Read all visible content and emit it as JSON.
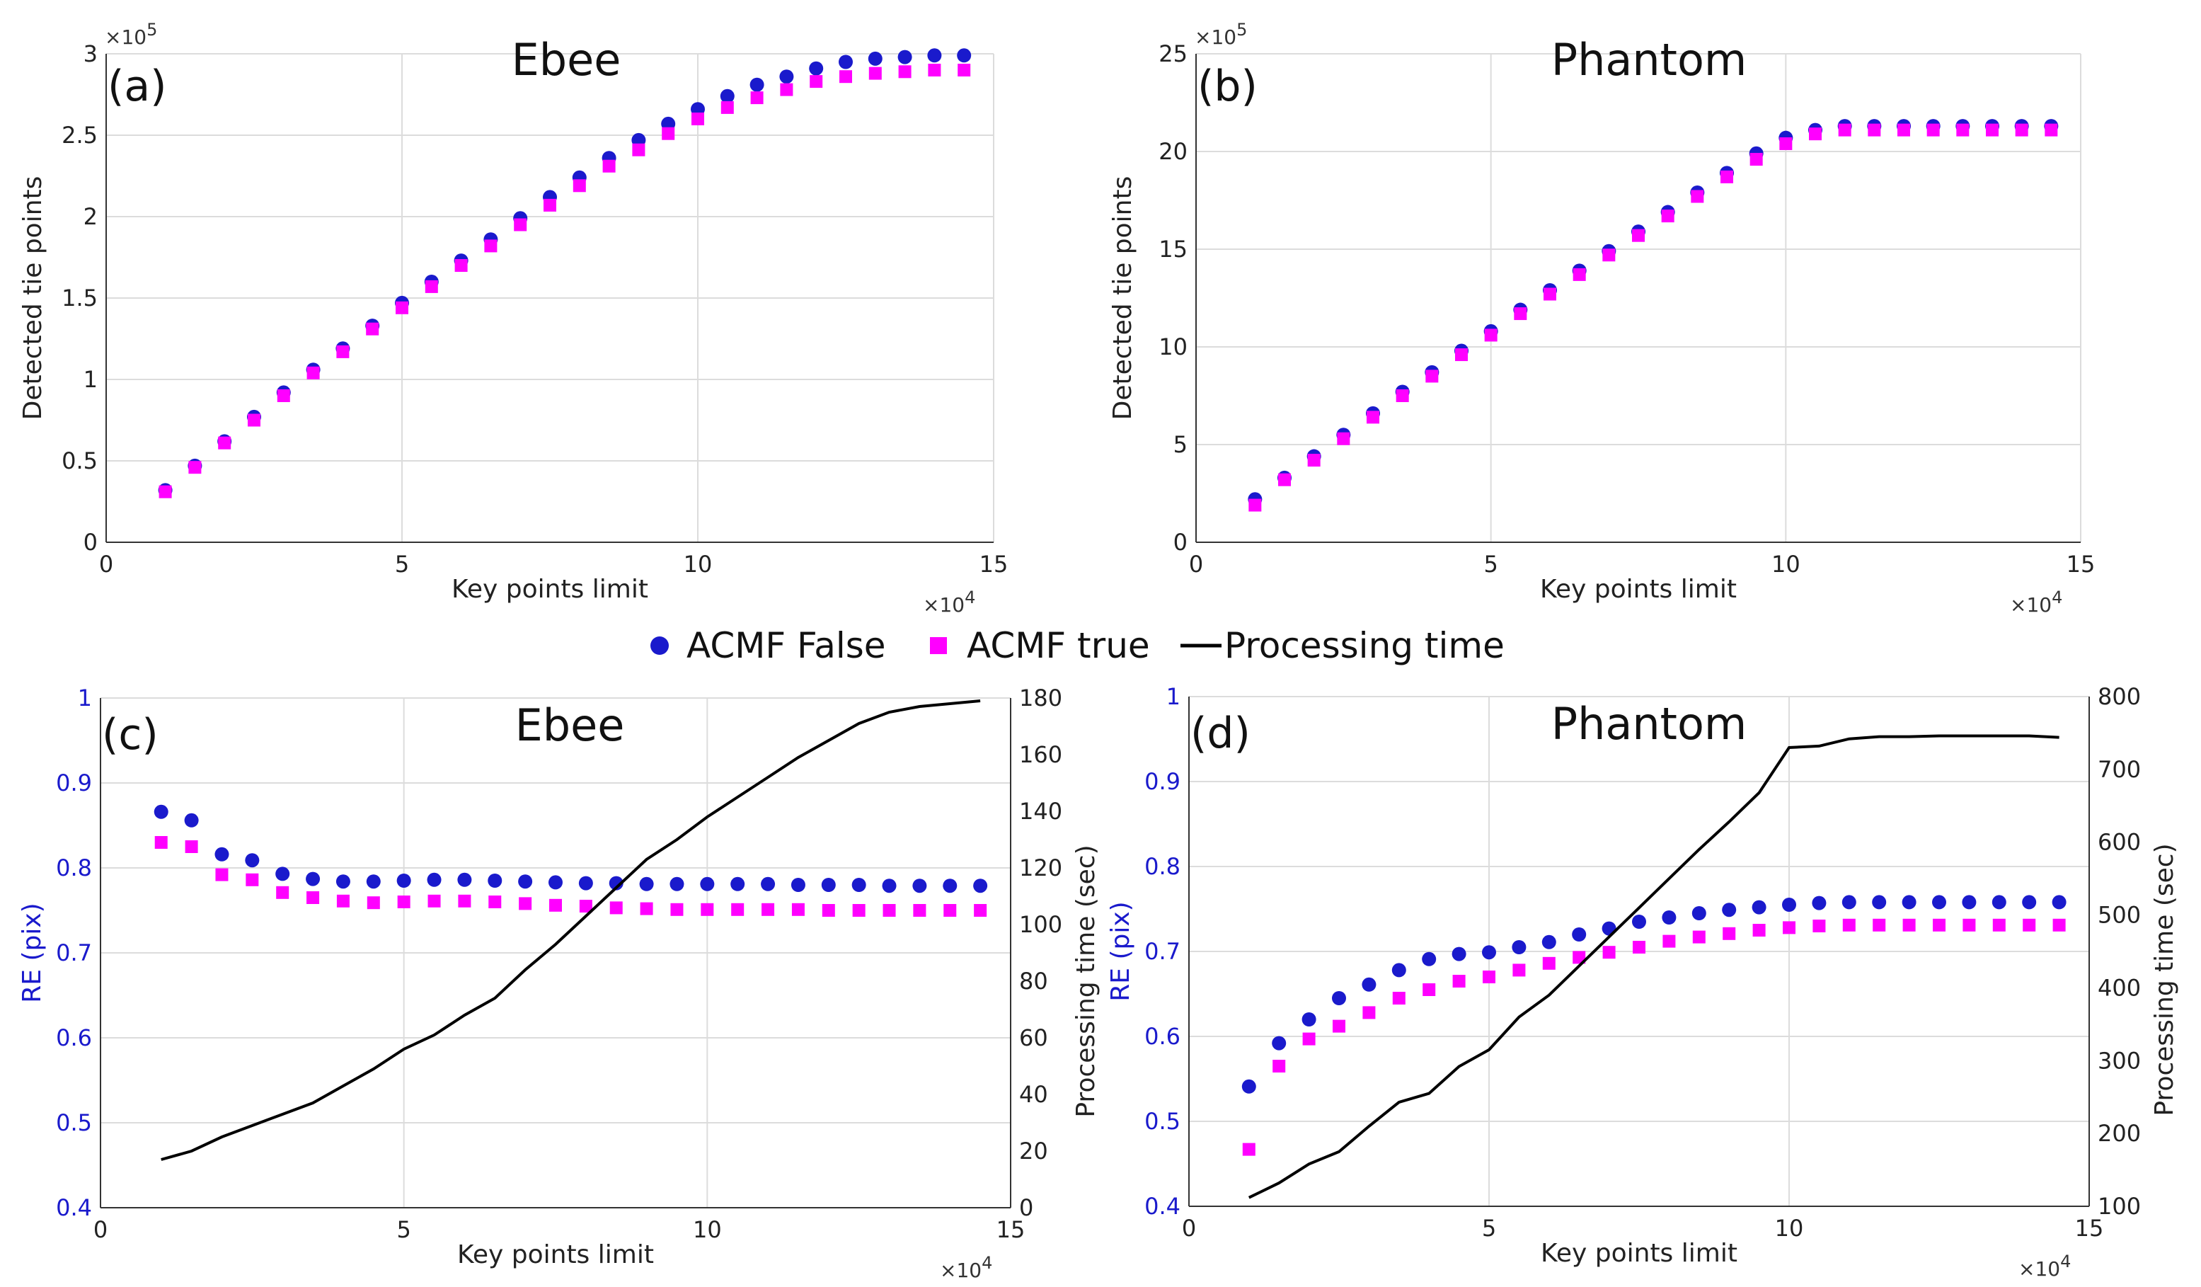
{
  "legend": {
    "entries": [
      {
        "label": "ACMF False",
        "marker": "circle",
        "color": "#1a1acc"
      },
      {
        "label": "ACMF true",
        "marker": "square",
        "color": "#ff00ff"
      },
      {
        "label": "Processing time",
        "marker": "line",
        "color": "#000000"
      }
    ]
  },
  "chart_data": [
    {
      "type": "scatter",
      "panel_label": "(a)",
      "title": "Ebee",
      "xlabel": "Key points limit",
      "ylabel": "Detected tie points",
      "x_exponent": "×10^4",
      "y_exponent": "×10^5",
      "xlim": [
        0,
        15
      ],
      "ylim": [
        0,
        3
      ],
      "xticks": [
        0,
        5,
        10,
        15
      ],
      "yticks": [
        0,
        0.5,
        1,
        1.5,
        2,
        2.5,
        3
      ],
      "grid": true,
      "series": [
        {
          "name": "ACMF False",
          "marker": "circle",
          "color": "#1a1acc",
          "x": [
            1,
            1.5,
            2,
            2.5,
            3,
            3.5,
            4,
            4.5,
            5,
            5.5,
            6,
            6.5,
            7,
            7.5,
            8,
            8.5,
            9,
            9.5,
            10,
            10.5,
            11,
            11.5,
            12,
            12.5,
            13,
            13.5,
            14,
            14.5
          ],
          "y": [
            0.32,
            0.47,
            0.62,
            0.77,
            0.92,
            1.06,
            1.19,
            1.33,
            1.47,
            1.6,
            1.73,
            1.86,
            1.99,
            2.12,
            2.24,
            2.36,
            2.47,
            2.57,
            2.66,
            2.74,
            2.81,
            2.86,
            2.91,
            2.95,
            2.97,
            2.98,
            2.99,
            2.99
          ]
        },
        {
          "name": "ACMF true",
          "marker": "square",
          "color": "#ff00ff",
          "x": [
            1,
            1.5,
            2,
            2.5,
            3,
            3.5,
            4,
            4.5,
            5,
            5.5,
            6,
            6.5,
            7,
            7.5,
            8,
            8.5,
            9,
            9.5,
            10,
            10.5,
            11,
            11.5,
            12,
            12.5,
            13,
            13.5,
            14,
            14.5
          ],
          "y": [
            0.31,
            0.46,
            0.61,
            0.75,
            0.9,
            1.04,
            1.17,
            1.31,
            1.44,
            1.57,
            1.7,
            1.82,
            1.95,
            2.07,
            2.19,
            2.31,
            2.41,
            2.51,
            2.6,
            2.67,
            2.73,
            2.78,
            2.83,
            2.86,
            2.88,
            2.89,
            2.9,
            2.9
          ]
        }
      ]
    },
    {
      "type": "scatter",
      "panel_label": "(b)",
      "title": "Phantom",
      "xlabel": "Key points limit",
      "ylabel": "Detected tie points",
      "x_exponent": "×10^4",
      "y_exponent": "×10^5",
      "xlim": [
        0,
        15
      ],
      "ylim": [
        0,
        25
      ],
      "xticks": [
        0,
        5,
        10,
        15
      ],
      "yticks": [
        0,
        5,
        10,
        15,
        20,
        25
      ],
      "grid": true,
      "series": [
        {
          "name": "ACMF False",
          "marker": "circle",
          "color": "#1a1acc",
          "x": [
            1,
            1.5,
            2,
            2.5,
            3,
            3.5,
            4,
            4.5,
            5,
            5.5,
            6,
            6.5,
            7,
            7.5,
            8,
            8.5,
            9,
            9.5,
            10,
            10.5,
            11,
            11.5,
            12,
            12.5,
            13,
            13.5,
            14,
            14.5
          ],
          "y": [
            2.2,
            3.3,
            4.4,
            5.5,
            6.6,
            7.7,
            8.7,
            9.8,
            10.8,
            11.9,
            12.9,
            13.9,
            14.9,
            15.9,
            16.9,
            17.9,
            18.9,
            19.9,
            20.7,
            21.1,
            21.3,
            21.3,
            21.3,
            21.3,
            21.3,
            21.3,
            21.3,
            21.3
          ]
        },
        {
          "name": "ACMF true",
          "marker": "square",
          "color": "#ff00ff",
          "x": [
            1,
            1.5,
            2,
            2.5,
            3,
            3.5,
            4,
            4.5,
            5,
            5.5,
            6,
            6.5,
            7,
            7.5,
            8,
            8.5,
            9,
            9.5,
            10,
            10.5,
            11,
            11.5,
            12,
            12.5,
            13,
            13.5,
            14,
            14.5
          ],
          "y": [
            1.9,
            3.2,
            4.2,
            5.3,
            6.4,
            7.5,
            8.5,
            9.6,
            10.6,
            11.7,
            12.7,
            13.7,
            14.7,
            15.7,
            16.7,
            17.7,
            18.7,
            19.6,
            20.4,
            20.9,
            21.1,
            21.1,
            21.1,
            21.1,
            21.1,
            21.1,
            21.1,
            21.1
          ]
        }
      ]
    },
    {
      "type": "scatter",
      "panel_label": "(c)",
      "title": "Ebee",
      "xlabel": "Key points limit",
      "ylabel": "RE (pix)",
      "y2label": "Processing time (sec)",
      "x_exponent": "×10^4",
      "xlim": [
        0,
        15
      ],
      "ylim": [
        0.4,
        1
      ],
      "y2lim": [
        0,
        180
      ],
      "xticks": [
        0,
        5,
        10,
        15
      ],
      "yticks": [
        0.4,
        0.5,
        0.6,
        0.7,
        0.8,
        0.9,
        1
      ],
      "y2ticks": [
        0,
        20,
        40,
        60,
        80,
        100,
        120,
        140,
        160,
        180
      ],
      "grid": true,
      "series": [
        {
          "name": "ACMF False",
          "marker": "circle",
          "color": "#1a1acc",
          "axis": "left",
          "x": [
            1,
            1.5,
            2,
            2.5,
            3,
            3.5,
            4,
            4.5,
            5,
            5.5,
            6,
            6.5,
            7,
            7.5,
            8,
            8.5,
            9,
            9.5,
            10,
            10.5,
            11,
            11.5,
            12,
            12.5,
            13,
            13.5,
            14,
            14.5
          ],
          "y": [
            0.866,
            0.856,
            0.816,
            0.809,
            0.793,
            0.787,
            0.784,
            0.784,
            0.785,
            0.786,
            0.786,
            0.785,
            0.784,
            0.783,
            0.782,
            0.782,
            0.781,
            0.781,
            0.781,
            0.781,
            0.781,
            0.78,
            0.78,
            0.78,
            0.779,
            0.779,
            0.779,
            0.779
          ]
        },
        {
          "name": "ACMF true",
          "marker": "square",
          "color": "#ff00ff",
          "axis": "left",
          "x": [
            1,
            1.5,
            2,
            2.5,
            3,
            3.5,
            4,
            4.5,
            5,
            5.5,
            6,
            6.5,
            7,
            7.5,
            8,
            8.5,
            9,
            9.5,
            10,
            10.5,
            11,
            11.5,
            12,
            12.5,
            13,
            13.5,
            14,
            14.5
          ],
          "y": [
            0.83,
            0.825,
            0.792,
            0.786,
            0.771,
            0.765,
            0.761,
            0.759,
            0.76,
            0.761,
            0.761,
            0.76,
            0.758,
            0.756,
            0.755,
            0.753,
            0.752,
            0.751,
            0.751,
            0.751,
            0.751,
            0.751,
            0.75,
            0.75,
            0.75,
            0.75,
            0.75,
            0.75
          ]
        },
        {
          "name": "Processing time",
          "marker": "line",
          "color": "#000000",
          "axis": "right",
          "x": [
            1,
            1.5,
            2,
            2.5,
            3,
            3.5,
            4,
            4.5,
            5,
            5.5,
            6,
            6.5,
            7,
            7.5,
            8,
            8.5,
            9,
            9.5,
            10,
            10.5,
            11,
            11.5,
            12,
            12.5,
            13,
            13.5,
            14,
            14.5
          ],
          "y": [
            17,
            20,
            25,
            29,
            33,
            37,
            43,
            49,
            56,
            61,
            68,
            74,
            84,
            93,
            103,
            113,
            123,
            130,
            138,
            145,
            152,
            159,
            165,
            171,
            175,
            177,
            178,
            179
          ]
        }
      ]
    },
    {
      "type": "scatter",
      "panel_label": "(d)",
      "title": "Phantom",
      "xlabel": "Key points limit",
      "ylabel": "RE (pix)",
      "y2label": "Processing time (sec)",
      "x_exponent": "×10^4",
      "xlim": [
        0,
        15
      ],
      "ylim": [
        0.4,
        1
      ],
      "y2lim": [
        100,
        800
      ],
      "xticks": [
        0,
        5,
        10,
        15
      ],
      "yticks": [
        0.4,
        0.5,
        0.6,
        0.7,
        0.8,
        0.9,
        1
      ],
      "y2ticks": [
        100,
        200,
        300,
        400,
        500,
        600,
        700,
        800
      ],
      "grid": true,
      "series": [
        {
          "name": "ACMF False",
          "marker": "circle",
          "color": "#1a1acc",
          "axis": "left",
          "x": [
            1,
            1.5,
            2,
            2.5,
            3,
            3.5,
            4,
            4.5,
            5,
            5.5,
            6,
            6.5,
            7,
            7.5,
            8,
            8.5,
            9,
            9.5,
            10,
            10.5,
            11,
            11.5,
            12,
            12.5,
            13,
            13.5,
            14,
            14.5
          ],
          "y": [
            0.541,
            0.592,
            0.62,
            0.645,
            0.661,
            0.678,
            0.691,
            0.697,
            0.699,
            0.705,
            0.711,
            0.72,
            0.727,
            0.735,
            0.74,
            0.745,
            0.749,
            0.752,
            0.755,
            0.757,
            0.758,
            0.758,
            0.758,
            0.758,
            0.758,
            0.758,
            0.758,
            0.758
          ]
        },
        {
          "name": "ACMF true",
          "marker": "square",
          "color": "#ff00ff",
          "axis": "left",
          "x": [
            1,
            1.5,
            2,
            2.5,
            3,
            3.5,
            4,
            4.5,
            5,
            5.5,
            6,
            6.5,
            7,
            7.5,
            8,
            8.5,
            9,
            9.5,
            10,
            10.5,
            11,
            11.5,
            12,
            12.5,
            13,
            13.5,
            14,
            14.5
          ],
          "y": [
            0.467,
            0.565,
            0.597,
            0.612,
            0.628,
            0.645,
            0.655,
            0.665,
            0.67,
            0.678,
            0.686,
            0.693,
            0.699,
            0.705,
            0.712,
            0.717,
            0.721,
            0.725,
            0.728,
            0.73,
            0.731,
            0.731,
            0.731,
            0.731,
            0.731,
            0.731,
            0.731,
            0.731
          ]
        },
        {
          "name": "Processing time",
          "marker": "line",
          "color": "#000000",
          "axis": "right",
          "x": [
            1,
            1.5,
            2,
            2.5,
            3,
            3.5,
            4,
            4.5,
            5,
            5.5,
            6,
            6.5,
            7,
            7.5,
            8,
            8.5,
            9,
            9.5,
            10,
            10.5,
            11,
            11.5,
            12,
            12.5,
            13,
            13.5,
            14,
            14.5
          ],
          "y": [
            112,
            132,
            158,
            175,
            210,
            243,
            255,
            292,
            315,
            360,
            390,
            430,
            470,
            510,
            550,
            590,
            628,
            668,
            730,
            732,
            742,
            745,
            745,
            746,
            746,
            746,
            746,
            744
          ]
        }
      ]
    }
  ]
}
